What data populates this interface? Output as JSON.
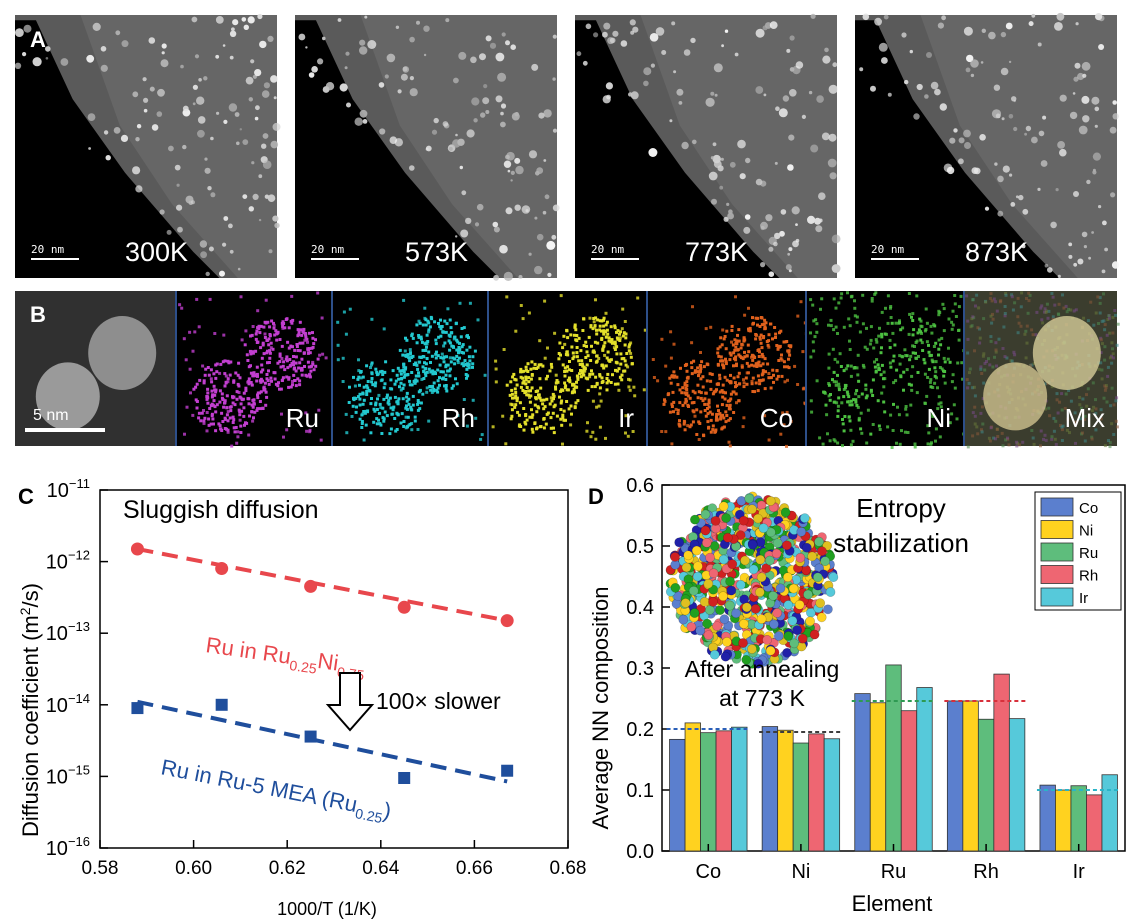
{
  "panel_a": {
    "label": "A",
    "scale_bar": "20 nm",
    "images": [
      {
        "temperature": "300K"
      },
      {
        "temperature": "573K"
      },
      {
        "temperature": "773K"
      },
      {
        "temperature": "873K"
      }
    ]
  },
  "panel_b": {
    "label": "B",
    "scale_bar": "5 nm",
    "maps": [
      {
        "element": "",
        "color": "#bdbdbd"
      },
      {
        "element": "Ru",
        "color": "#c23fd0"
      },
      {
        "element": "Rh",
        "color": "#23c9d0"
      },
      {
        "element": "Ir",
        "color": "#e3df2a"
      },
      {
        "element": "Co",
        "color": "#e0611d"
      },
      {
        "element": "Ni",
        "color": "#4cc041"
      },
      {
        "element": "Mix",
        "color": "#c7b67a"
      }
    ]
  },
  "chart_data": [
    {
      "panel": "C",
      "type": "scatter",
      "title": "Sluggish diffusion",
      "xlabel": "1000/T (1/K)",
      "ylabel": "Diffusion coefficient (m²/s)",
      "xlim": [
        0.58,
        0.68
      ],
      "ylim_log10": [
        -16,
        -11
      ],
      "x_ticks": [
        "0.58",
        "0.60",
        "0.62",
        "0.64",
        "0.66",
        "0.68"
      ],
      "annotation": "100× slower",
      "series": [
        {
          "name": "Ru in Ru0.25Ni0.75",
          "label_main": "Ru in Ru",
          "label_sub1": "0.25",
          "label_mid": "Ni",
          "label_sub2": "0.75",
          "color": "#e8474c",
          "marker": "circle",
          "x": [
            0.588,
            0.606,
            0.625,
            0.645,
            0.667
          ],
          "y": [
            1.5e-12,
            8e-13,
            4.5e-13,
            2.3e-13,
            1.5e-13
          ],
          "fit_y": [
            1.5e-12,
            1.5e-13
          ]
        },
        {
          "name": "Ru in Ru-5 MEA (Ru0.25)",
          "label_main": "Ru in Ru-5 MEA (Ru",
          "label_sub1": "0.25",
          "label_end": ")",
          "color": "#1f4e9c",
          "marker": "square",
          "x": [
            0.588,
            0.606,
            0.625,
            0.645,
            0.667
          ],
          "y": [
            9e-15,
            1e-14,
            3.6e-15,
            9.5e-16,
            1.2e-15
          ],
          "fit_y": [
            1.1e-14,
            8.5e-16
          ]
        }
      ]
    },
    {
      "panel": "D",
      "type": "bar",
      "title_line1": "Entropy",
      "title_line2": "stabilization",
      "inset_caption_line1": "After annealing",
      "inset_caption_line2": "at 773 K",
      "xlabel": "Element",
      "ylabel": "Average NN composition",
      "ylim": [
        0,
        0.6
      ],
      "y_ticks": [
        "0.0",
        "0.1",
        "0.2",
        "0.3",
        "0.4",
        "0.5",
        "0.6"
      ],
      "categories": [
        "Co",
        "Ni",
        "Ru",
        "Rh",
        "Ir"
      ],
      "series": [
        {
          "name": "Co",
          "color": "#5b7fce",
          "values": [
            0.183,
            0.204,
            0.258,
            0.246,
            0.108
          ]
        },
        {
          "name": "Ni",
          "color": "#ffd21f",
          "values": [
            0.21,
            0.198,
            0.243,
            0.246,
            0.1
          ]
        },
        {
          "name": "Ru",
          "color": "#5ebd7c",
          "values": [
            0.194,
            0.177,
            0.305,
            0.216,
            0.107
          ]
        },
        {
          "name": "Rh",
          "color": "#ee6672",
          "values": [
            0.197,
            0.192,
            0.23,
            0.29,
            0.092
          ]
        },
        {
          "name": "Ir",
          "color": "#56c9da",
          "values": [
            0.203,
            0.184,
            0.268,
            0.217,
            0.125
          ]
        }
      ],
      "reference_lines": [
        {
          "category": "Co",
          "value": 0.2,
          "color": "#2a5fb8"
        },
        {
          "category": "Ni",
          "value": 0.195,
          "color": "#3d3d3d"
        },
        {
          "category": "Ru",
          "value": 0.246,
          "color": "#2e9a52"
        },
        {
          "category": "Rh",
          "value": 0.246,
          "color": "#d8303b"
        },
        {
          "category": "Ir",
          "value": 0.1,
          "color": "#2ab4c8"
        }
      ]
    }
  ]
}
